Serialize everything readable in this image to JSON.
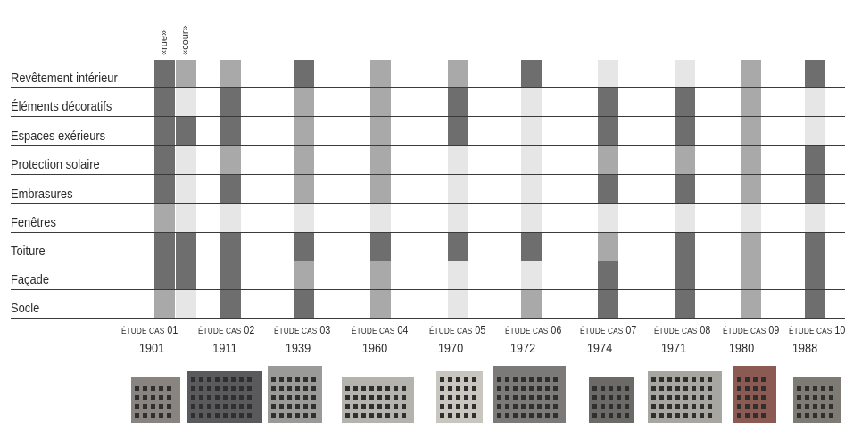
{
  "annotations": [
    "«rue»",
    "«cour»"
  ],
  "rows": [
    "Revêtement intérieur",
    "Éléments décoratifs",
    "Espaces exérieurs",
    "Protection solaire",
    "Embrasures",
    "Fenêtres",
    "Toiture",
    "Façade",
    "Socle"
  ],
  "cases": [
    {
      "label_prefix": "ÉTUDE CAS",
      "number": "01",
      "year": "1901"
    },
    {
      "label_prefix": "ÉTUDE CAS",
      "number": "02",
      "year": "1911"
    },
    {
      "label_prefix": "ÉTUDE CAS",
      "number": "03",
      "year": "1939"
    },
    {
      "label_prefix": "ÉTUDE CAS",
      "number": "04",
      "year": "1960"
    },
    {
      "label_prefix": "ÉTUDE CAS",
      "number": "05",
      "year": "1970"
    },
    {
      "label_prefix": "ÉTUDE CAS",
      "number": "06",
      "year": "1972"
    },
    {
      "label_prefix": "ÉTUDE CAS",
      "number": "07",
      "year": "1974"
    },
    {
      "label_prefix": "ÉTUDE CAS",
      "number": "08",
      "year": "1971"
    },
    {
      "label_prefix": "ÉTUDE CAS",
      "number": "09",
      "year": "1980"
    },
    {
      "label_prefix": "ÉTUDE CAS",
      "number": "10",
      "year": "1988"
    }
  ],
  "palette": {
    "dark": "#6e6e6e",
    "mid": "#a9a9a9",
    "light": "#e6e6e6"
  },
  "matrix": [
    [
      "dark",
      "dark",
      "dark",
      "dark",
      "dark",
      "mid",
      "dark",
      "dark",
      "mid"
    ],
    [
      "mid",
      "light",
      "dark",
      "light",
      "light",
      "light",
      "dark",
      "dark",
      "light"
    ],
    [
      "mid",
      "dark",
      "dark",
      "mid",
      "dark",
      "light",
      "dark",
      "dark",
      "dark"
    ],
    [
      "dark",
      "mid",
      "mid",
      "mid",
      "mid",
      "light",
      "dark",
      "mid",
      "dark"
    ],
    [
      "mid",
      "mid",
      "mid",
      "mid",
      "mid",
      "light",
      "dark",
      "mid",
      "mid"
    ],
    [
      "mid",
      "dark",
      "dark",
      "light",
      "light",
      "light",
      "dark",
      "light",
      "light"
    ],
    [
      "dark",
      "light",
      "light",
      "light",
      "light",
      "light",
      "dark",
      "light",
      "mid"
    ],
    [
      "light",
      "dark",
      "dark",
      "mid",
      "dark",
      "light",
      "mid",
      "dark",
      "dark"
    ],
    [
      "light",
      "dark",
      "dark",
      "mid",
      "dark",
      "light",
      "dark",
      "dark",
      "dark"
    ],
    [
      "mid",
      "mid",
      "mid",
      "mid",
      "mid",
      "light",
      "mid",
      "mid",
      "mid"
    ],
    [
      "dark",
      "light",
      "light",
      "dark",
      "dark",
      "light",
      "dark",
      "dark",
      "dark"
    ]
  ]
}
